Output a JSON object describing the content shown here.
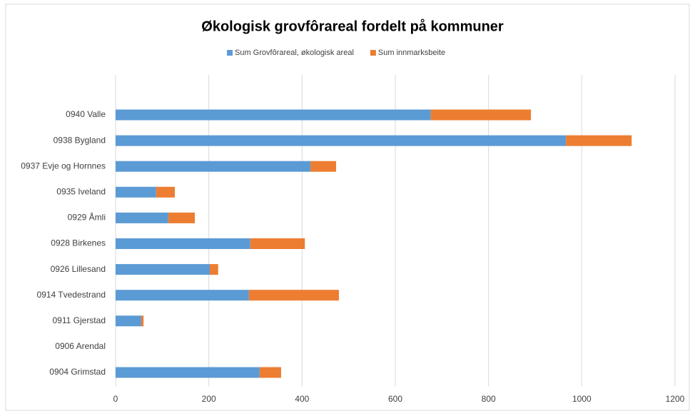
{
  "chart_data": {
    "type": "bar",
    "orientation": "horizontal",
    "stacked": true,
    "title": "Økologisk grovfôrareal fordelt på kommuner",
    "categories": [
      "0940 Valle",
      "0938 Bygland",
      "0937 Evje og Hornnes",
      "0935 Iveland",
      "0929 Åmli",
      "0928 Birkenes",
      "0926 Lillesand",
      "0914 Tvedestrand",
      "0911 Gjerstad",
      "0906 Arendal",
      "0904 Grimstad"
    ],
    "series": [
      {
        "name": "Sum Grovfôrareal, økologisk areal",
        "color": "#5b9bd5",
        "values": [
          676,
          966,
          418,
          87,
          113,
          289,
          202,
          286,
          55,
          0,
          309
        ]
      },
      {
        "name": "Sum innmarksbeite",
        "color": "#ed7d31",
        "values": [
          215,
          141,
          55,
          40,
          57,
          117,
          18,
          193,
          5,
          0,
          46
        ]
      }
    ],
    "xlim": [
      0,
      1200
    ],
    "xticks": [
      0,
      200,
      400,
      600,
      800,
      1000,
      1200
    ],
    "grid": true,
    "legend": "top"
  }
}
